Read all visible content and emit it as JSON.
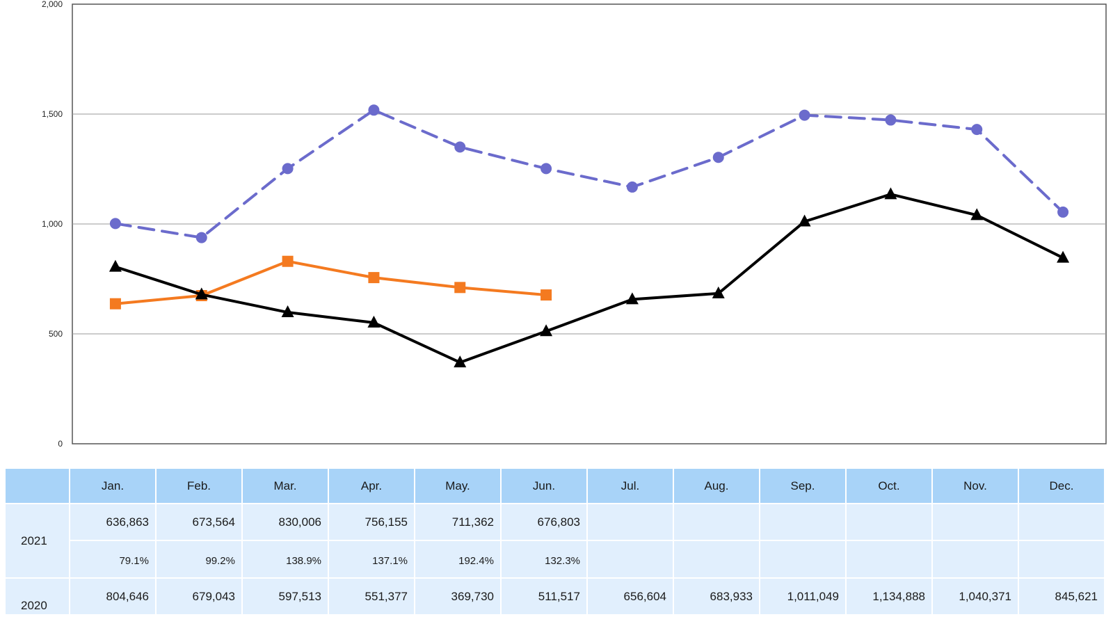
{
  "chart_data": {
    "type": "line",
    "categories": [
      "Jan.",
      "Feb.",
      "Mar.",
      "Apr.",
      "May.",
      "Jun.",
      "Jul.",
      "Aug.",
      "Sep.",
      "Oct.",
      "Nov.",
      "Dec."
    ],
    "ylim": [
      0,
      2000
    ],
    "yticks": [
      "0",
      "500",
      "1,000",
      "1,500",
      "2,000"
    ],
    "ytick_values": [
      0,
      500,
      1000,
      1500,
      2000
    ],
    "grid": true,
    "series": [
      {
        "key": "s2021",
        "color": "#f47a20",
        "style": "solid",
        "marker": "square",
        "values": [
          637,
          674,
          830,
          756,
          711,
          677,
          null,
          null,
          null,
          null,
          null,
          null
        ]
      },
      {
        "key": "s2020",
        "color": "#000000",
        "style": "solid",
        "marker": "triangle",
        "values": [
          805,
          679,
          598,
          551,
          370,
          512,
          657,
          684,
          1011,
          1135,
          1040,
          846
        ]
      },
      {
        "key": "s2019",
        "color": "#6b6bcc",
        "style": "dashed",
        "marker": "circle",
        "values": [
          1002,
          938,
          1252,
          1518,
          1350,
          1252,
          1168,
          1303,
          1495,
          1473,
          1430,
          1054
        ]
      }
    ]
  },
  "table": {
    "header": [
      "Jan.",
      "Feb.",
      "Mar.",
      "Apr.",
      "May.",
      "Jun.",
      "Jul.",
      "Aug.",
      "Sep.",
      "Oct.",
      "Nov.",
      "Dec."
    ],
    "rows": [
      {
        "year": "2021",
        "values": [
          "636,863",
          "673,564",
          "830,006",
          "756,155",
          "711,362",
          "676,803",
          "",
          "",
          "",
          "",
          "",
          ""
        ],
        "ratios": [
          "79.1%",
          "99.2%",
          "138.9%",
          "137.1%",
          "192.4%",
          "132.3%",
          "",
          "",
          "",
          "",
          "",
          ""
        ]
      },
      {
        "year": "2020",
        "values": [
          "804,646",
          "679,043",
          "597,513",
          "551,377",
          "369,730",
          "511,517",
          "656,604",
          "683,933",
          "1,011,049",
          "1,134,888",
          "1,040,371",
          "845,621"
        ]
      }
    ]
  }
}
